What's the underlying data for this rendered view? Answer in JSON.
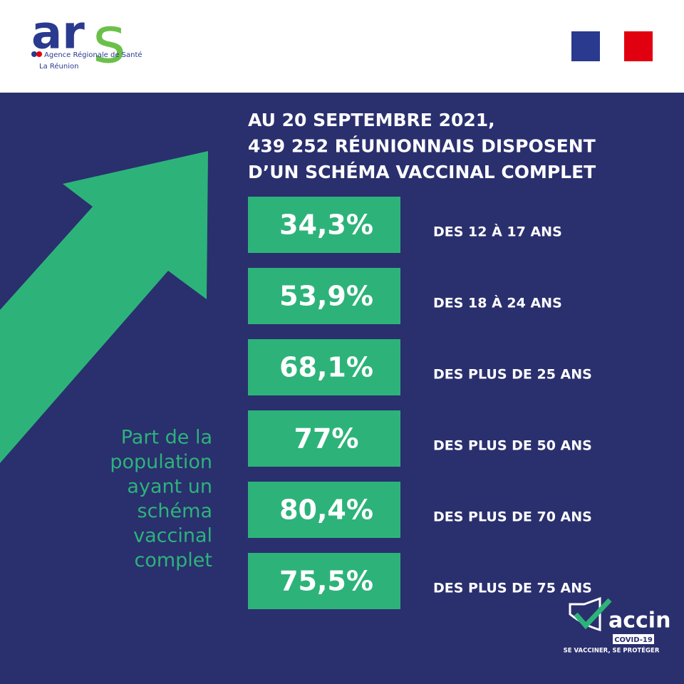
{
  "logo": {
    "main": "ar",
    "accent": "s",
    "agency": "Agence Régionale de Santé",
    "region": "La Réunion"
  },
  "title": [
    "AU 20 SEPTEMBRE 2021,",
    "439 252 RÉUNIONNAIS DISPOSENT",
    "D’UN SCHÉMA VACCINAL COMPLET"
  ],
  "rows": [
    {
      "value": "34,3%",
      "label": "DES 12 À 17 ANS"
    },
    {
      "value": "53,9%",
      "label": "DES 18 À 24 ANS"
    },
    {
      "value": "68,1%",
      "label": "DES PLUS DE 25 ANS"
    },
    {
      "value": "77%",
      "label": "DES PLUS DE 50 ANS"
    },
    {
      "value": "80,4%",
      "label": "DES PLUS DE 70 ANS"
    },
    {
      "value": "75,5%",
      "label": "DES PLUS DE 75 ANS"
    }
  ],
  "side_note": [
    "Part de la",
    "population",
    "ayant un",
    "schéma",
    "vaccinal",
    "complet"
  ],
  "badge": {
    "word": "accin",
    "tag": "COVID-19",
    "slogan": "SE VACCINER, SE PROTÉGER"
  }
}
